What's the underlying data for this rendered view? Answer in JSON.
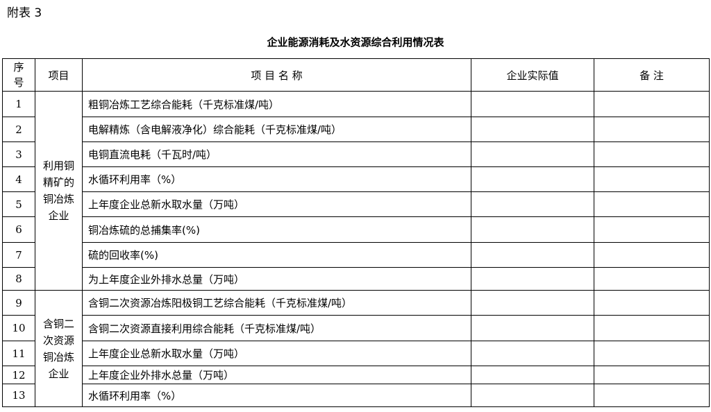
{
  "appendix_label": "附表 3",
  "title": "企业能源消耗及水资源综合利用情况表",
  "headers": {
    "seq": "序号",
    "item": "项目",
    "name": "项 目 名 称",
    "value": "企业实际值",
    "remark": "备 注"
  },
  "groups": [
    {
      "label": "利用铜精矿的铜冶炼企业"
    },
    {
      "label": "含铜二次资源铜冶炼企业"
    }
  ],
  "rows": [
    {
      "seq": "1",
      "name": "粗铜冶炼工艺综合能耗（千克标准煤/吨）",
      "value": "",
      "remark": ""
    },
    {
      "seq": "2",
      "name": "电解精炼（含电解液净化）综合能耗（千克标准煤/吨）",
      "value": "",
      "remark": ""
    },
    {
      "seq": "3",
      "name": "电铜直流电耗（千瓦时/吨）",
      "value": "",
      "remark": ""
    },
    {
      "seq": "4",
      "name": "水循环利用率（%）",
      "value": "",
      "remark": ""
    },
    {
      "seq": "5",
      "name": "上年度企业总新水取水量（万吨）",
      "value": "",
      "remark": ""
    },
    {
      "seq": "6",
      "name": "铜冶炼硫的总捕集率(%)",
      "value": "",
      "remark": ""
    },
    {
      "seq": "7",
      "name": "硫的回收率(%)",
      "value": "",
      "remark": ""
    },
    {
      "seq": "8",
      "name": "为上年度企业外排水总量（万吨）",
      "value": "",
      "remark": ""
    },
    {
      "seq": "9",
      "name": "含铜二次资源冶炼阳极铜工艺综合能耗（千克标准煤/吨）",
      "value": "",
      "remark": ""
    },
    {
      "seq": "10",
      "name": "含铜二次资源直接利用综合能耗（千克标准煤/吨）",
      "value": "",
      "remark": ""
    },
    {
      "seq": "11",
      "name": "上年度企业总新水取水量（万吨）",
      "value": "",
      "remark": ""
    },
    {
      "seq": "12",
      "name": "上年度企业外排水总量（万吨）",
      "value": "",
      "remark": ""
    },
    {
      "seq": "13",
      "name": "水循环利用率（%）",
      "value": "",
      "remark": ""
    }
  ]
}
